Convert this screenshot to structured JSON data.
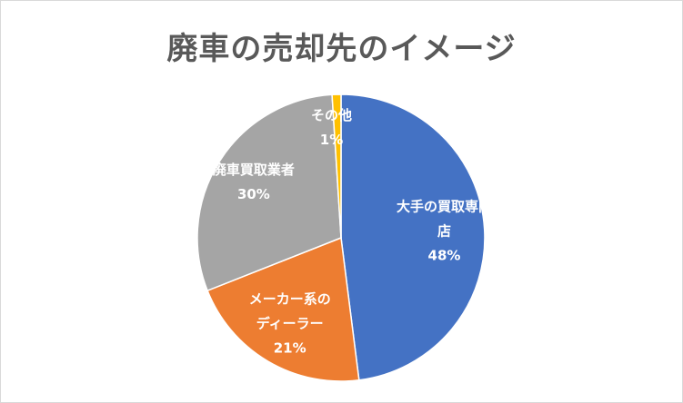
{
  "chart_data": {
    "type": "pie",
    "title": "廃車の売却先のイメージ",
    "slices": [
      {
        "name": "大手の買取専門店",
        "label_lines": [
          "大手の買取専門",
          "店"
        ],
        "value": 48,
        "value_label": "48%",
        "color": "#4472c4"
      },
      {
        "name": "メーカー系のディーラー",
        "label_lines": [
          "メーカー系の",
          "ディーラー"
        ],
        "value": 21,
        "value_label": "21%",
        "color": "#ed7d31"
      },
      {
        "name": "廃車買取業者",
        "label_lines": [
          "廃車買取業者"
        ],
        "value": 30,
        "value_label": "30%",
        "color": "#a5a5a5"
      },
      {
        "name": "その他",
        "label_lines": [
          "その他"
        ],
        "value": 1,
        "value_label": "1%",
        "color": "#ffc000"
      }
    ],
    "legend": "none",
    "start_angle": "12 o'clock",
    "direction": "clockwise"
  }
}
